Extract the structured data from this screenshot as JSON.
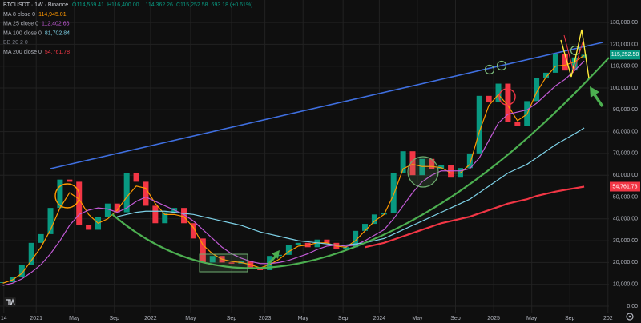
{
  "chart_data": {
    "type": "candlestick",
    "header": {
      "symbol": "BTCUSDT · 1W · Binance",
      "ohlc": [
        "O114,559.41",
        "H116,400.00",
        "L114,362.26",
        "C115,252.58",
        "693.18 (+0.61%)"
      ]
    },
    "last_price_label": "115,252.58",
    "up_color": "#089981",
    "down_color": "#f23645",
    "x": [
      -3.5,
      -2.5,
      -1.5,
      -0.5,
      0.5,
      1.5,
      2.5,
      3.5,
      4.5,
      5.5,
      6.5,
      7.5,
      8.5,
      9.5,
      10.5,
      11.5,
      12.5,
      13.5,
      14.5,
      15.5,
      16.5,
      17.5,
      18.5,
      19.5,
      20.5,
      21.5,
      22.5,
      23.5,
      24.5,
      25.5,
      26.5,
      27.5,
      28.5,
      29.5,
      30.5,
      31.5,
      32.5,
      33.5,
      34.5,
      35.5,
      36.5,
      37.5,
      38.5,
      39.5,
      40.5,
      41.5,
      42.5,
      43.5,
      44.5,
      45.5,
      46.5,
      47.5,
      48.5,
      49.5,
      50.5,
      51.5,
      52.5,
      53.5,
      54.5,
      55.5,
      56.5,
      57.5
    ],
    "values": [
      11000,
      13500,
      19000,
      29000,
      33000,
      45000,
      58000,
      57000,
      37000,
      35000,
      41000,
      47000,
      43000,
      61000,
      57000,
      46000,
      38000,
      43000,
      45000,
      38000,
      31000,
      20000,
      23000,
      20000,
      19500,
      20500,
      17000,
      16500,
      23000,
      23500,
      28000,
      29000,
      27000,
      30500,
      29000,
      26000,
      27000,
      34500,
      37700,
      42000,
      42500,
      61000,
      71000,
      60000,
      67500,
      62700,
      64600,
      58900,
      63300,
      70000,
      96400,
      93400,
      102000,
      84300,
      82500,
      94000,
      104600,
      107000,
      115700,
      108000,
      114000,
      115252.58
    ],
    "series": [
      {
        "name": "MA 8 close 0",
        "color": "#ff9800",
        "last_value_label": "114,945.01",
        "values": [
          10500,
          12000,
          15000,
          21000,
          27000,
          35000,
          45000,
          52000,
          49000,
          42000,
          38000,
          40000,
          44000,
          50000,
          55000,
          54000,
          47000,
          42000,
          42000,
          41000,
          36000,
          28000,
          24000,
          21500,
          20500,
          20000,
          19000,
          17500,
          19000,
          21500,
          25000,
          27500,
          28000,
          29000,
          29000,
          27500,
          27000,
          30000,
          34500,
          39000,
          42000,
          51000,
          63000,
          65000,
          64000,
          64000,
          63500,
          61000,
          61000,
          65000,
          80000,
          92000,
          97000,
          92000,
          85000,
          88000,
          98000,
          105000,
          110000,
          110500,
          112000,
          114945.01
        ]
      },
      {
        "name": "MA 25 close 0",
        "color": "#c25ad6",
        "last_value_label": "112,402.66",
        "values": [
          9500,
          10500,
          12500,
          15500,
          19000,
          24000,
          30000,
          37000,
          42000,
          44000,
          45000,
          44500,
          43000,
          45000,
          48000,
          50000,
          48000,
          46000,
          44000,
          42000,
          39000,
          35000,
          31000,
          27000,
          24000,
          22000,
          20500,
          19500,
          19500,
          20000,
          21000,
          22500,
          24000,
          26000,
          27500,
          28000,
          27500,
          28000,
          30000,
          32500,
          35000,
          40000,
          46000,
          52000,
          57000,
          60000,
          62000,
          62000,
          62000,
          63000,
          68000,
          76000,
          84000,
          88000,
          89000,
          90000,
          93000,
          97000,
          101000,
          104000,
          108000,
          112402.66
        ]
      },
      {
        "name": "MA 100 close 0",
        "color": "#7ed2e8",
        "last_value_label": "81,702.84",
        "values": [
          null,
          null,
          null,
          null,
          null,
          null,
          null,
          null,
          null,
          null,
          null,
          null,
          41000,
          42000,
          43000,
          43500,
          43500,
          43500,
          43000,
          42500,
          42000,
          41000,
          40000,
          39000,
          38000,
          37000,
          35500,
          34000,
          33000,
          32000,
          31000,
          30000,
          29500,
          29000,
          28500,
          28000,
          28000,
          28500,
          29000,
          30000,
          31000,
          33000,
          35000,
          37000,
          39000,
          41000,
          43000,
          45000,
          47000,
          49000,
          52000,
          55000,
          58000,
          61000,
          63000,
          65000,
          68000,
          71000,
          74000,
          76500,
          79000,
          81702.84
        ]
      },
      {
        "name": "MA 200 close 0",
        "color": "#f23645",
        "last_value_label": "54,761.78",
        "values": [
          null,
          null,
          null,
          null,
          null,
          null,
          null,
          null,
          null,
          null,
          null,
          null,
          null,
          null,
          null,
          null,
          null,
          null,
          null,
          null,
          null,
          null,
          null,
          null,
          null,
          null,
          null,
          null,
          null,
          null,
          null,
          null,
          null,
          null,
          null,
          null,
          null,
          null,
          27000,
          28000,
          29000,
          30500,
          32000,
          33500,
          35000,
          36500,
          38000,
          39000,
          40000,
          41000,
          42500,
          44000,
          45500,
          47000,
          48000,
          49000,
          50500,
          51500,
          52500,
          53300,
          54000,
          54761.78
        ]
      }
    ],
    "indicators": [
      {
        "name": "BB 20 2 0"
      }
    ],
    "xlim": [
      -3.8,
      60.1
    ],
    "xticks": [
      {
        "value": -3.4,
        "label": "14"
      },
      {
        "value": 0,
        "label": "2021"
      },
      {
        "value": 4,
        "label": "May"
      },
      {
        "value": 8.2,
        "label": "Sep"
      },
      {
        "value": 12,
        "label": "2022"
      },
      {
        "value": 16.2,
        "label": "May"
      },
      {
        "value": 20.5,
        "label": "Sep"
      },
      {
        "value": 24,
        "label": "2023"
      },
      {
        "value": 28,
        "label": "May"
      },
      {
        "value": 32.2,
        "label": "Sep"
      },
      {
        "value": 36,
        "label": "2024"
      },
      {
        "value": 40,
        "label": "May"
      },
      {
        "value": 44,
        "label": "Sep"
      },
      {
        "value": 48,
        "label": "2025"
      },
      {
        "value": 52,
        "label": "May"
      },
      {
        "value": 56,
        "label": "Sep"
      },
      {
        "value": 60,
        "label": "202"
      }
    ],
    "ylim": [
      -3300,
      140300
    ],
    "yticks": [
      {
        "value": 0,
        "label": "0.00"
      },
      {
        "value": 10000,
        "label": "10,000.00"
      },
      {
        "value": 20000,
        "label": "20,000.00"
      },
      {
        "value": 30000,
        "label": "30,000.00"
      },
      {
        "value": 40000,
        "label": "40,000.00"
      },
      {
        "value": 50000,
        "label": "50,000.00"
      },
      {
        "value": 60000,
        "label": "60,000.00"
      },
      {
        "value": 70000,
        "label": "70,000.00"
      },
      {
        "value": 80000,
        "label": "80,000.00"
      },
      {
        "value": 90000,
        "label": "90,000.00"
      },
      {
        "value": 100000,
        "label": "100,000.00"
      },
      {
        "value": 110000,
        "label": "110,000.00"
      },
      {
        "value": 120000,
        "label": "120,000.00"
      },
      {
        "value": 130000,
        "label": "130,000.00"
      }
    ],
    "grid": true
  }
}
